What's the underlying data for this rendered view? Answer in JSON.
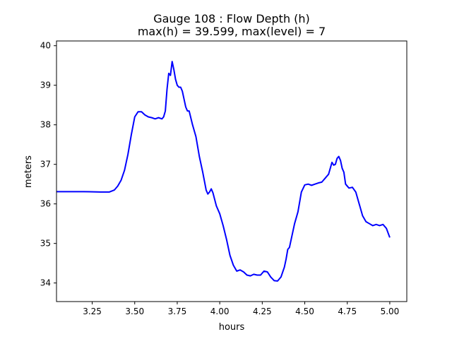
{
  "chart_data": {
    "type": "line",
    "title_line1": "Gauge 108 : Flow Depth (h)",
    "title_line2": "max(h) =  39.599,    max(level) = 7",
    "xlabel": "hours",
    "ylabel": "meters",
    "xlim": [
      3.04,
      5.1
    ],
    "ylim": [
      33.53,
      40.12
    ],
    "xticks": [
      3.25,
      3.5,
      3.75,
      4.0,
      4.25,
      4.5,
      4.75,
      5.0
    ],
    "xtick_labels": [
      "3.25",
      "3.50",
      "3.75",
      "4.00",
      "4.25",
      "4.50",
      "4.75",
      "5.00"
    ],
    "yticks": [
      34,
      35,
      36,
      37,
      38,
      39,
      40
    ],
    "ytick_labels": [
      "34",
      "35",
      "36",
      "37",
      "38",
      "39",
      "40"
    ],
    "grid": false,
    "series": [
      {
        "color": "#0000ff",
        "x": [
          3.04,
          3.1,
          3.2,
          3.3,
          3.35,
          3.38,
          3.4,
          3.42,
          3.44,
          3.46,
          3.48,
          3.5,
          3.52,
          3.54,
          3.56,
          3.58,
          3.6,
          3.62,
          3.64,
          3.66,
          3.67,
          3.68,
          3.69,
          3.7,
          3.71,
          3.72,
          3.73,
          3.74,
          3.75,
          3.76,
          3.77,
          3.78,
          3.79,
          3.8,
          3.81,
          3.82,
          3.84,
          3.86,
          3.88,
          3.9,
          3.92,
          3.93,
          3.94,
          3.95,
          3.96,
          3.98,
          4.0,
          4.02,
          4.04,
          4.06,
          4.08,
          4.1,
          4.12,
          4.14,
          4.16,
          4.18,
          4.2,
          4.22,
          4.24,
          4.26,
          4.28,
          4.3,
          4.32,
          4.34,
          4.36,
          4.38,
          4.39,
          4.4,
          4.41,
          4.42,
          4.44,
          4.46,
          4.48,
          4.5,
          4.52,
          4.54,
          4.56,
          4.58,
          4.6,
          4.62,
          4.64,
          4.66,
          4.67,
          4.68,
          4.69,
          4.7,
          4.71,
          4.72,
          4.73,
          4.74,
          4.76,
          4.78,
          4.8,
          4.82,
          4.84,
          4.86,
          4.88,
          4.9,
          4.92,
          4.94,
          4.96,
          4.98,
          5.0
        ],
        "y": [
          36.31,
          36.31,
          36.31,
          36.3,
          36.3,
          36.35,
          36.45,
          36.6,
          36.85,
          37.25,
          37.75,
          38.2,
          38.33,
          38.33,
          38.25,
          38.2,
          38.18,
          38.15,
          38.18,
          38.15,
          38.2,
          38.35,
          38.9,
          39.3,
          39.25,
          39.6,
          39.4,
          39.15,
          39.0,
          38.95,
          38.95,
          38.85,
          38.65,
          38.45,
          38.35,
          38.35,
          38.0,
          37.7,
          37.2,
          36.8,
          36.35,
          36.25,
          36.3,
          36.38,
          36.28,
          35.95,
          35.75,
          35.45,
          35.1,
          34.7,
          34.45,
          34.3,
          34.33,
          34.28,
          34.2,
          34.18,
          34.22,
          34.2,
          34.2,
          34.3,
          34.28,
          34.15,
          34.06,
          34.05,
          34.15,
          34.4,
          34.6,
          34.85,
          34.9,
          35.1,
          35.5,
          35.8,
          36.3,
          36.48,
          36.5,
          36.47,
          36.5,
          36.53,
          36.55,
          36.65,
          36.75,
          37.05,
          36.98,
          37.0,
          37.15,
          37.2,
          37.1,
          36.9,
          36.8,
          36.5,
          36.4,
          36.42,
          36.3,
          36.0,
          35.7,
          35.55,
          35.5,
          35.45,
          35.48,
          35.45,
          35.48,
          35.38,
          35.15
        ]
      }
    ]
  }
}
